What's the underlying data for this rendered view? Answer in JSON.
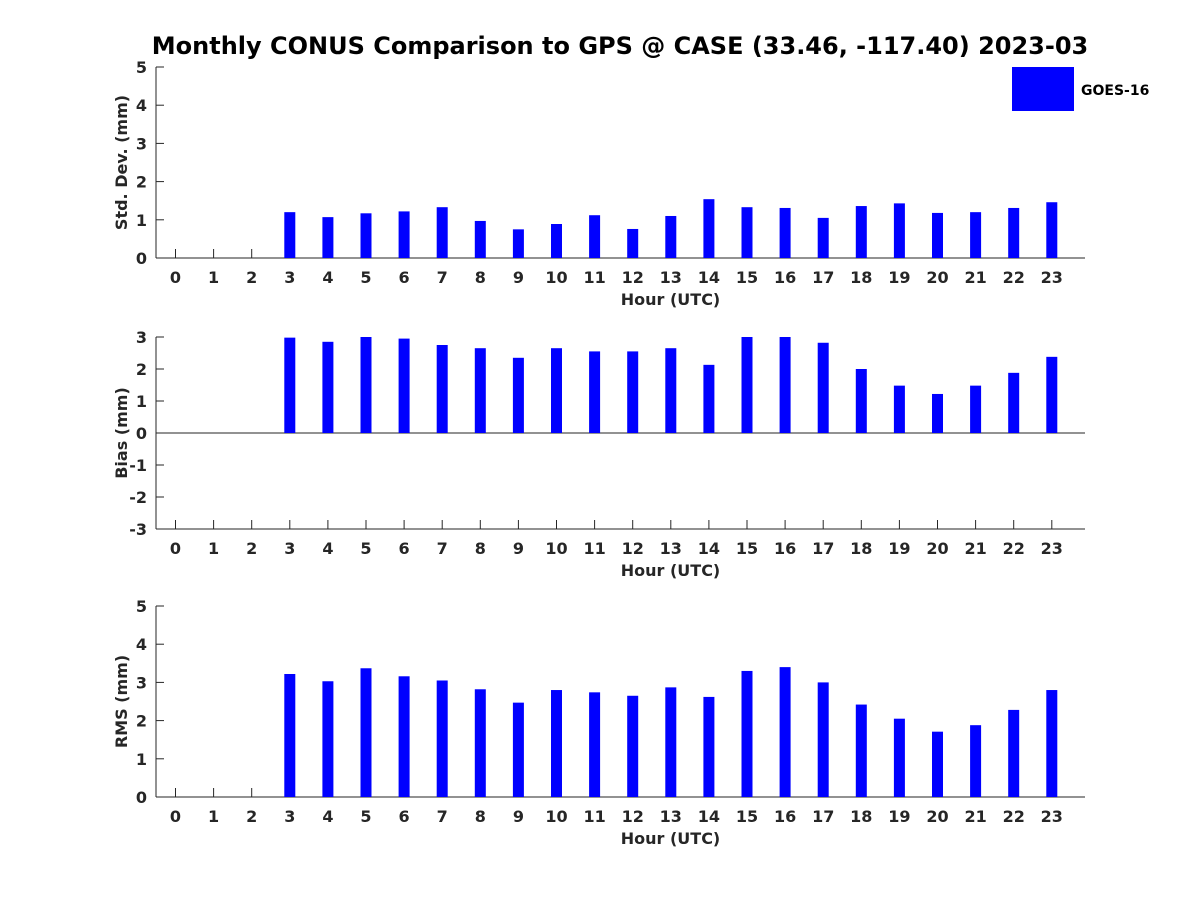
{
  "colors": {
    "bar": "#0000FF",
    "axis": "#262626",
    "background": "#FFFFFF"
  },
  "chart_data": {
    "title": "Monthly CONUS Comparison to GPS @ CASE (33.46, -117.40) 2023-03",
    "legend": {
      "label": "GOES-16",
      "position": "top-right"
    },
    "panels": [
      {
        "type": "bar",
        "ylabel": "Std. Dev. (mm)",
        "xlabel": "Hour (UTC)",
        "ylim": [
          0,
          5
        ],
        "yticks": [
          0,
          1,
          2,
          3,
          4,
          5
        ],
        "categories": [
          "0",
          "1",
          "2",
          "3",
          "4",
          "5",
          "6",
          "7",
          "8",
          "9",
          "10",
          "11",
          "12",
          "13",
          "14",
          "15",
          "16",
          "17",
          "18",
          "19",
          "20",
          "21",
          "22",
          "23"
        ],
        "series": [
          {
            "name": "GOES-16",
            "values": [
              null,
              null,
              null,
              1.2,
              1.07,
              1.17,
              1.22,
              1.33,
              0.97,
              0.75,
              0.89,
              1.12,
              0.76,
              1.1,
              1.54,
              1.33,
              1.31,
              1.05,
              1.36,
              1.43,
              1.18,
              1.2,
              1.31,
              1.46
            ]
          }
        ]
      },
      {
        "type": "bar",
        "ylabel": "Bias (mm)",
        "xlabel": "Hour (UTC)",
        "ylim": [
          -3,
          3
        ],
        "yticks": [
          -3,
          -2,
          -1,
          0,
          1,
          2,
          3
        ],
        "categories": [
          "0",
          "1",
          "2",
          "3",
          "4",
          "5",
          "6",
          "7",
          "8",
          "9",
          "10",
          "11",
          "12",
          "13",
          "14",
          "15",
          "16",
          "17",
          "18",
          "19",
          "20",
          "21",
          "22",
          "23"
        ],
        "series": [
          {
            "name": "GOES-16",
            "values": [
              null,
              null,
              null,
              2.98,
              2.85,
              3.0,
              2.95,
              2.75,
              2.65,
              2.35,
              2.65,
              2.55,
              2.55,
              2.65,
              2.13,
              3.0,
              3.0,
              2.82,
              2.0,
              1.48,
              1.22,
              1.48,
              1.88,
              2.38
            ]
          }
        ]
      },
      {
        "type": "bar",
        "ylabel": "RMS (mm)",
        "xlabel": "Hour (UTC)",
        "ylim": [
          0,
          5
        ],
        "yticks": [
          0,
          1,
          2,
          3,
          4,
          5
        ],
        "categories": [
          "0",
          "1",
          "2",
          "3",
          "4",
          "5",
          "6",
          "7",
          "8",
          "9",
          "10",
          "11",
          "12",
          "13",
          "14",
          "15",
          "16",
          "17",
          "18",
          "19",
          "20",
          "21",
          "22",
          "23"
        ],
        "series": [
          {
            "name": "GOES-16",
            "values": [
              null,
              null,
              null,
              3.22,
              3.03,
              3.37,
              3.16,
              3.05,
              2.82,
              2.47,
              2.8,
              2.74,
              2.65,
              2.87,
              2.62,
              3.3,
              3.4,
              3.0,
              2.42,
              2.05,
              1.71,
              1.88,
              2.28,
              2.8
            ]
          }
        ]
      }
    ]
  }
}
